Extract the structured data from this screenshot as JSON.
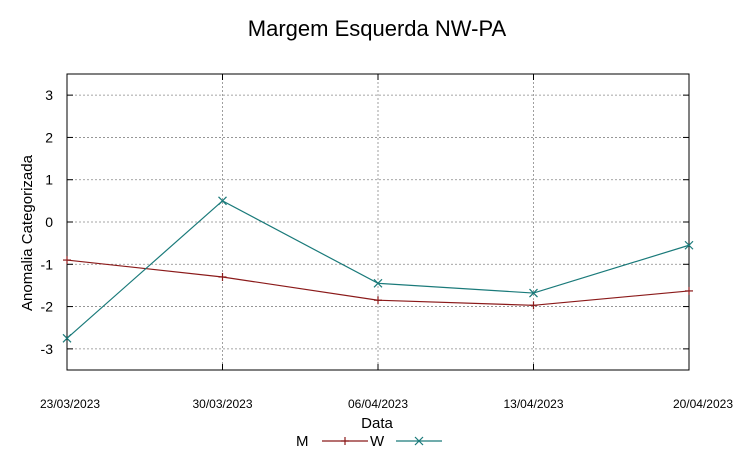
{
  "chart_data": {
    "type": "line",
    "title": "Margem Esquerda NW-PA",
    "xlabel": "Data",
    "ylabel": "Anomalia Categorizada",
    "categories": [
      "23/03/2023",
      "30/03/2023",
      "06/04/2023",
      "13/04/2023",
      "20/04/2023"
    ],
    "ylim": [
      -3.5,
      3.5
    ],
    "yticks": [
      3,
      2,
      1,
      0,
      -1,
      -2,
      -3
    ],
    "grid": true,
    "legend_position": "bottom",
    "series": [
      {
        "name": "M",
        "marker": "+",
        "color": "#8b1a1a",
        "values": [
          -0.9,
          -1.3,
          -1.85,
          -1.97,
          -1.63
        ]
      },
      {
        "name": "W",
        "marker": "x",
        "color": "#1a7a7a",
        "values": [
          -2.75,
          0.5,
          -1.45,
          -1.68,
          -0.55
        ]
      }
    ]
  }
}
